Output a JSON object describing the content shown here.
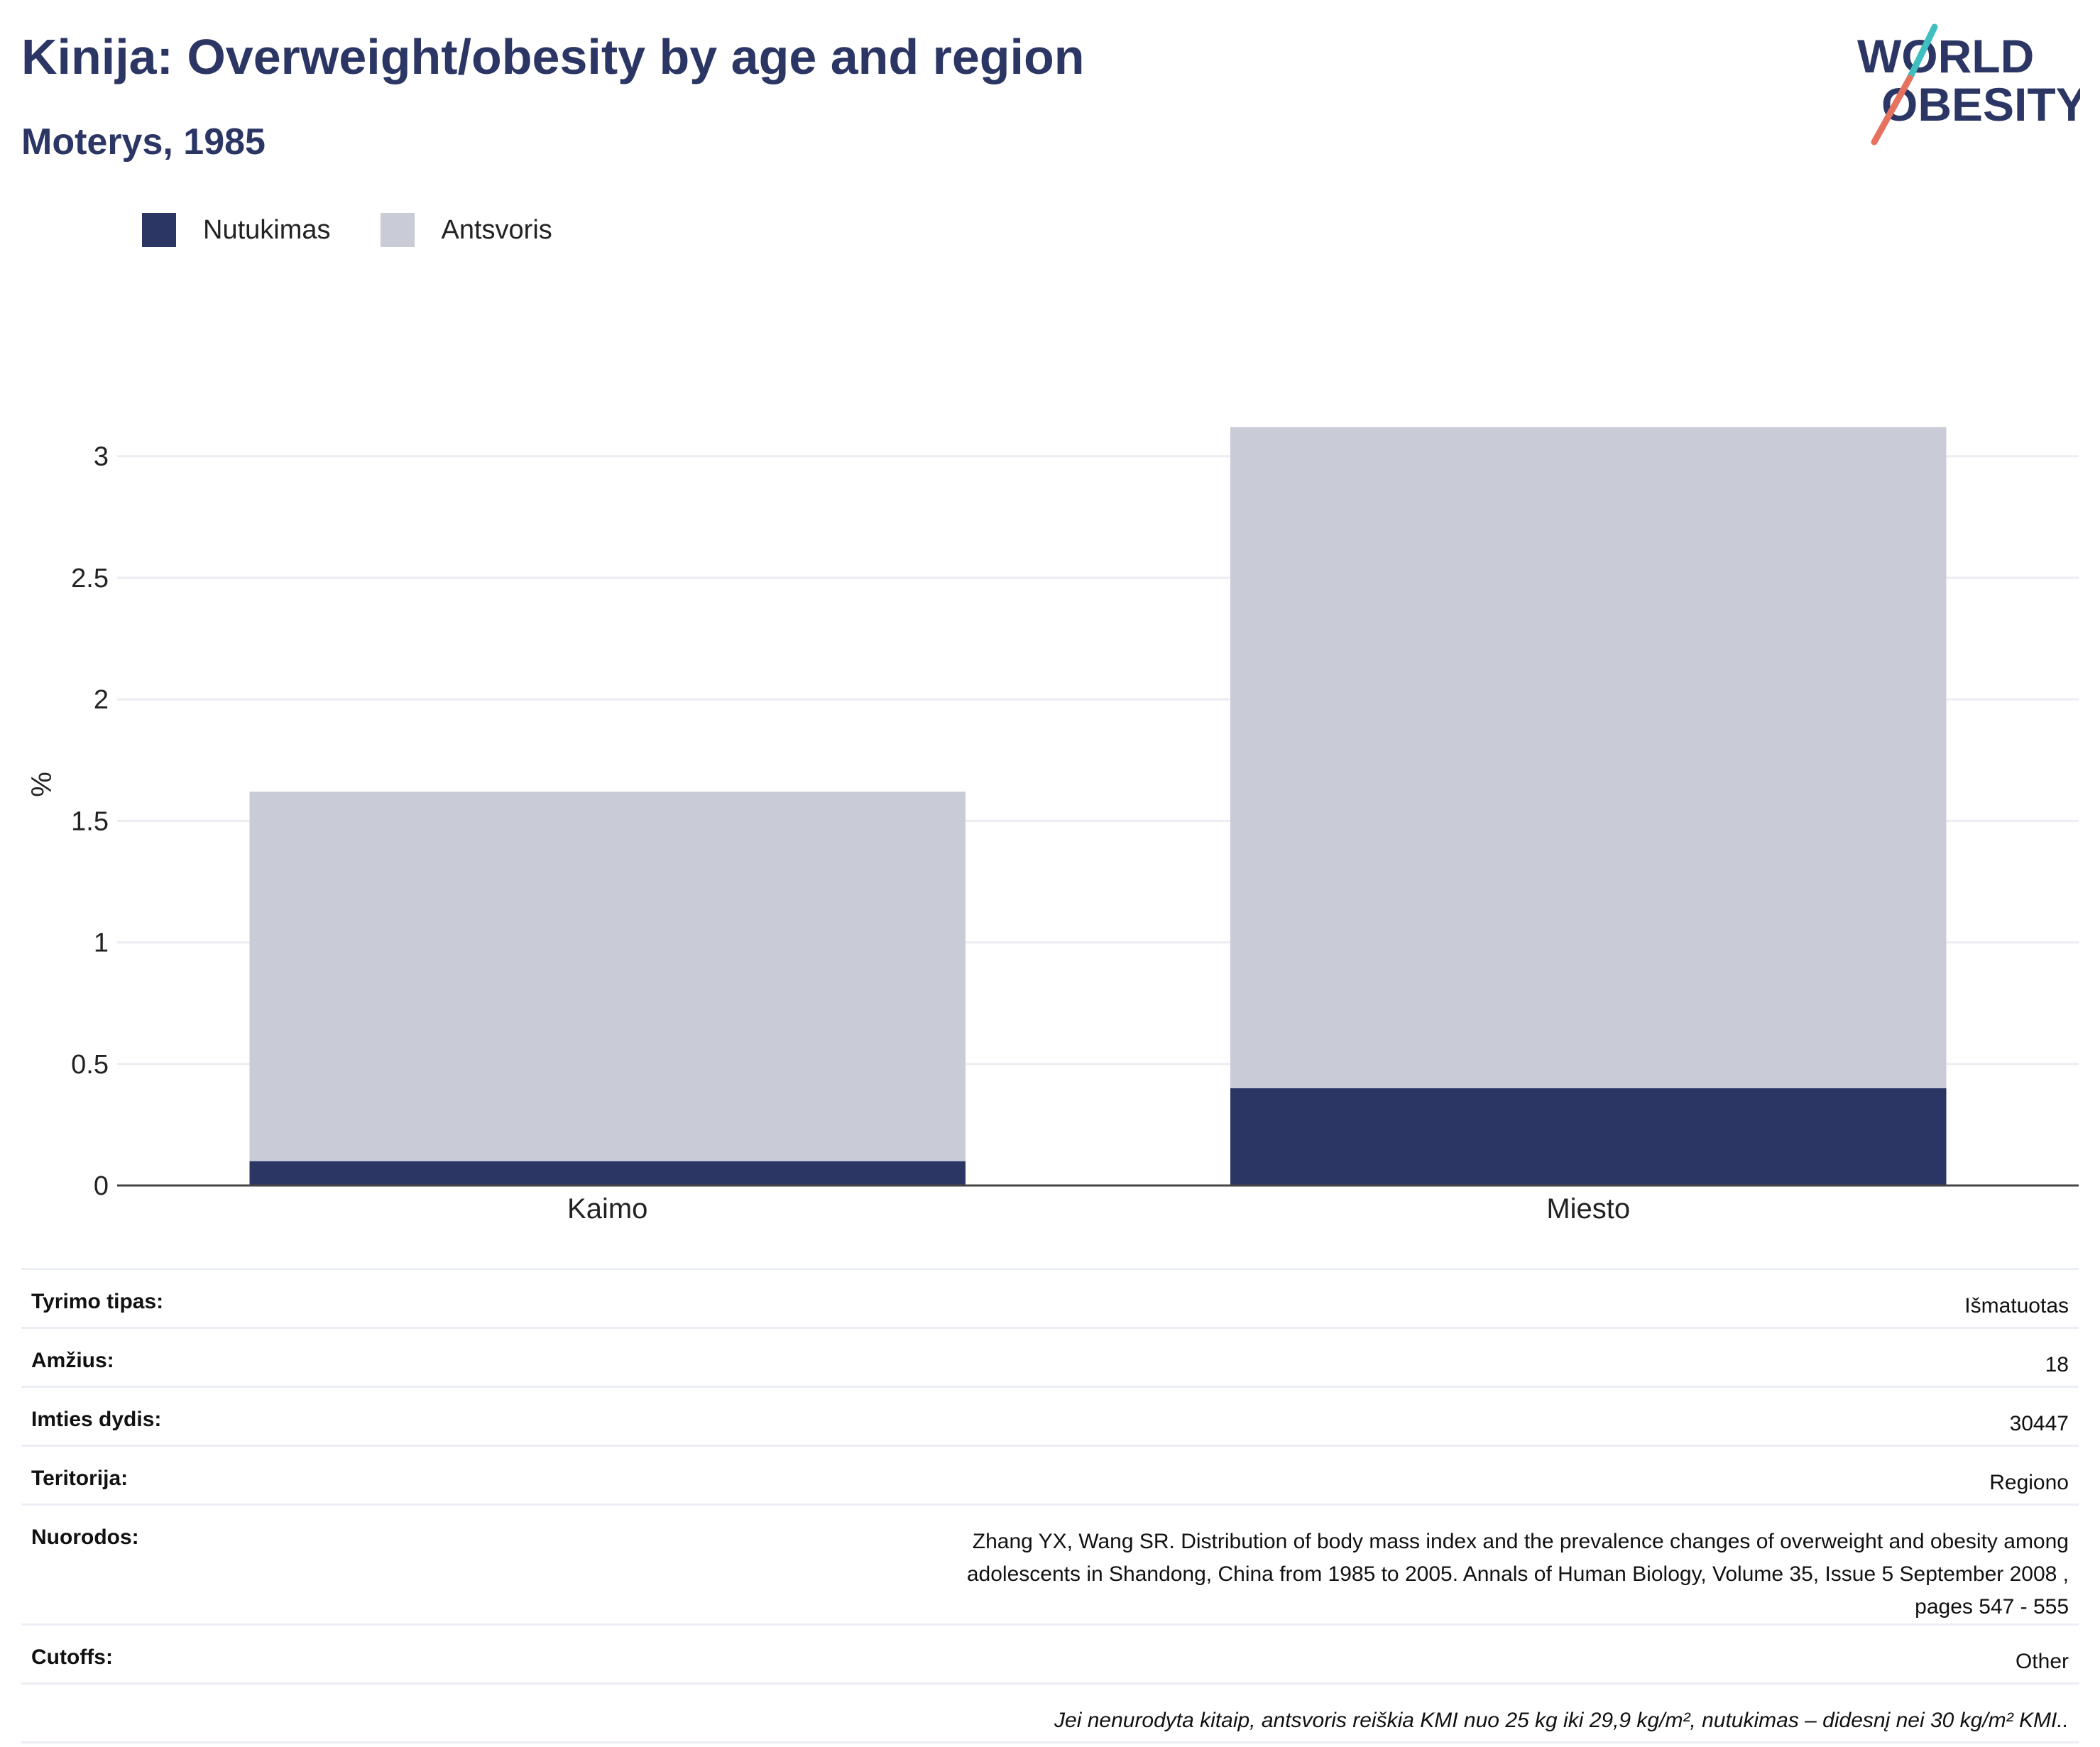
{
  "header": {
    "title": "Kinija: Overweight/obesity by age and region",
    "subtitle": "Moterys, 1985",
    "logo_line1": "WORLD",
    "logo_line2": "OBESITY"
  },
  "legend": [
    {
      "label": "Nutukimas",
      "color": "#2b3664"
    },
    {
      "label": "Antsvoris",
      "color": "#c9cbd7"
    }
  ],
  "chart_data": {
    "type": "bar",
    "stacked": true,
    "categories": [
      "Kaimo",
      "Miesto"
    ],
    "series": [
      {
        "name": "Nutukimas",
        "color": "#2b3664",
        "values": [
          0.1,
          0.4
        ]
      },
      {
        "name": "Antsvoris",
        "color": "#c9cbd7",
        "values": [
          1.52,
          2.72
        ]
      }
    ],
    "ylabel": "%",
    "ylim": [
      0,
      3.3
    ],
    "yticks": [
      "0",
      "0.5",
      "1",
      "1.5",
      "2",
      "2.5",
      "3"
    ],
    "grid": true
  },
  "meta": [
    {
      "key": "Tyrimo tipas:",
      "value": "Išmatuotas"
    },
    {
      "key": "Amžius:",
      "value": "18"
    },
    {
      "key": "Imties dydis:",
      "value": "30447"
    },
    {
      "key": "Teritorija:",
      "value": "Regiono"
    },
    {
      "key": "Nuorodos:",
      "value": "Zhang YX, Wang SR. Distribution of body mass index and the prevalence changes of overweight and obesity among adolescents in Shandong, China from 1985 to 2005. Annals of Human Biology, Volume 35, Issue 5 September 2008 , pages 547 - 555"
    },
    {
      "key": "Cutoffs:",
      "value": "Other"
    }
  ],
  "footnote": "Jei nenurodyta kitaip, antsvoris reiškia KMI nuo 25 kg iki 29,9 kg/m², nutukimas – didesnį nei 30 kg/m² KMI.."
}
